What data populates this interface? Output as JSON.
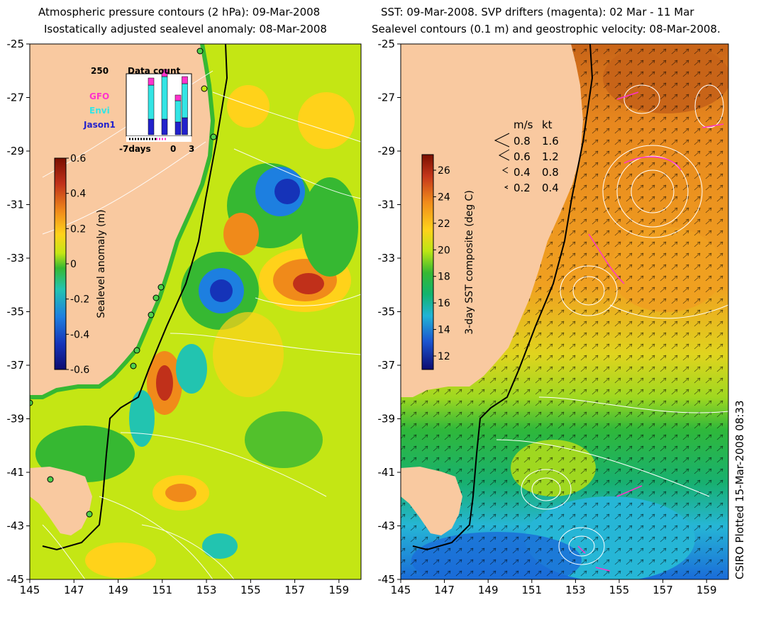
{
  "left_panel": {
    "title_line1": "Atmospheric pressure contours (2 hPa): 09-Mar-2008",
    "title_line2": "Isostatically adjusted sealevel anomaly: 08-Mar-2008",
    "colorbar_label": "Sealevel anomaly (m)",
    "colorbar_ticks": [
      "0.6",
      "0.4",
      "0.2",
      "0",
      "-0.2",
      "-0.4",
      "-0.6"
    ],
    "data_count": {
      "title": "Data count",
      "max_label": "250",
      "x_labels": [
        "-7days",
        "0",
        "3"
      ],
      "legend": [
        {
          "name": "GFO",
          "color": "#ff33cc"
        },
        {
          "name": "Envi",
          "color": "#33e5e5"
        },
        {
          "name": "Jason1",
          "color": "#2222cc"
        }
      ]
    }
  },
  "right_panel": {
    "title_line1": "SST: 09-Mar-2008. SVP drifters (magenta): 02 Mar - 11 Mar",
    "title_line2": "Sealevel contours (0.1 m) and geostrophic velocity: 08-Mar-2008.",
    "colorbar_label": "3-day SST composite (deg C)",
    "colorbar_ticks": [
      "26",
      "24",
      "22",
      "20",
      "18",
      "16",
      "14",
      "12"
    ],
    "velocity_legend": {
      "header_ms": "m/s",
      "header_kt": "kt",
      "rows": [
        {
          "ms": "0.8",
          "kt": "1.6"
        },
        {
          "ms": "0.6",
          "kt": "1.2"
        },
        {
          "ms": "0.4",
          "kt": "0.8"
        },
        {
          "ms": "0.2",
          "kt": "0.4"
        }
      ]
    }
  },
  "axes": {
    "x_ticks": [
      "145",
      "147",
      "149",
      "151",
      "153",
      "155",
      "157",
      "159"
    ],
    "y_ticks": [
      "-25",
      "-27",
      "-29",
      "-31",
      "-33",
      "-35",
      "-37",
      "-39",
      "-41",
      "-43",
      "-45"
    ]
  },
  "credit": "CSIRO Plotted 15-Mar-2008 08:33",
  "colors": {
    "land": "#f9c9a0",
    "coast_green": "#36b832",
    "blue_low": "#1565c8",
    "red_high": "#c0301a"
  }
}
